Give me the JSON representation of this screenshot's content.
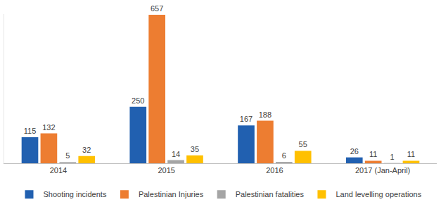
{
  "chart_data": {
    "type": "bar",
    "categories": [
      "2014",
      "2015",
      "2016",
      "2017 (Jan-April)"
    ],
    "series": [
      {
        "name": "Shooting incidents",
        "color": "#2160B0",
        "values": [
          115,
          250,
          167,
          26
        ]
      },
      {
        "name": "Palestinian Injuries",
        "color": "#ED7D31",
        "values": [
          132,
          657,
          188,
          11
        ]
      },
      {
        "name": "Palestinian fatalities",
        "color": "#A5A5A5",
        "values": [
          5,
          14,
          6,
          1
        ]
      },
      {
        "name": "Land levelling operations",
        "color": "#FFC000",
        "values": [
          32,
          35,
          55,
          11
        ]
      }
    ],
    "ylim": [
      0,
      660
    ],
    "grid": false,
    "legend": "bottom",
    "data_labels": true,
    "tick_labels": "x"
  }
}
